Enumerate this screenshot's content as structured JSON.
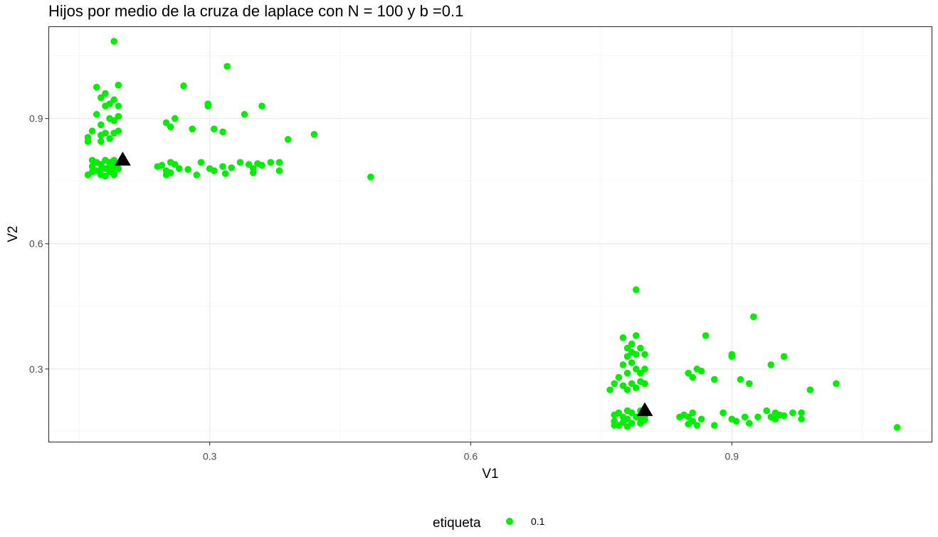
{
  "chart_data": {
    "type": "scatter",
    "title": "Hijos por medio de la cruza de laplace con N = 100 y b =0.1",
    "xlabel": "V1",
    "ylabel": "V2",
    "xlim": [
      0.115,
      1.13
    ],
    "ylim": [
      0.125,
      1.12
    ],
    "x_ticks": [
      0.3,
      0.6,
      0.9
    ],
    "x_tick_labels": [
      "0.3",
      "0.6",
      "0.9"
    ],
    "y_ticks": [
      0.3,
      0.6,
      0.9
    ],
    "y_tick_labels": [
      "0.3",
      "0.6",
      "0.9"
    ],
    "grid": true,
    "theme": "bw",
    "legend": {
      "title": "etiqueta",
      "position": "bottom",
      "labels": [
        "0.1"
      ]
    },
    "series": [
      {
        "name": "0.1",
        "color": "#00ee00",
        "marker": "circle",
        "points": [
          [
            0.19,
            1.085
          ],
          [
            0.32,
            1.025
          ],
          [
            0.17,
            0.975
          ],
          [
            0.195,
            0.98
          ],
          [
            0.27,
            0.978
          ],
          [
            0.18,
            0.96
          ],
          [
            0.175,
            0.95
          ],
          [
            0.19,
            0.945
          ],
          [
            0.185,
            0.935
          ],
          [
            0.195,
            0.93
          ],
          [
            0.18,
            0.93
          ],
          [
            0.298,
            0.935
          ],
          [
            0.298,
            0.93
          ],
          [
            0.36,
            0.93
          ],
          [
            0.17,
            0.91
          ],
          [
            0.34,
            0.91
          ],
          [
            0.185,
            0.9
          ],
          [
            0.195,
            0.905
          ],
          [
            0.19,
            0.895
          ],
          [
            0.26,
            0.9
          ],
          [
            0.25,
            0.89
          ],
          [
            0.175,
            0.885
          ],
          [
            0.255,
            0.88
          ],
          [
            0.28,
            0.875
          ],
          [
            0.305,
            0.875
          ],
          [
            0.315,
            0.868
          ],
          [
            0.18,
            0.865
          ],
          [
            0.19,
            0.865
          ],
          [
            0.195,
            0.87
          ],
          [
            0.165,
            0.87
          ],
          [
            0.175,
            0.86
          ],
          [
            0.42,
            0.862
          ],
          [
            0.16,
            0.855
          ],
          [
            0.185,
            0.852
          ],
          [
            0.175,
            0.845
          ],
          [
            0.39,
            0.85
          ],
          [
            0.16,
            0.845
          ],
          [
            0.165,
            0.8
          ],
          [
            0.17,
            0.795
          ],
          [
            0.18,
            0.8
          ],
          [
            0.185,
            0.795
          ],
          [
            0.175,
            0.79
          ],
          [
            0.19,
            0.8
          ],
          [
            0.165,
            0.785
          ],
          [
            0.185,
            0.785
          ],
          [
            0.19,
            0.785
          ],
          [
            0.18,
            0.78
          ],
          [
            0.195,
            0.78
          ],
          [
            0.17,
            0.775
          ],
          [
            0.175,
            0.778
          ],
          [
            0.165,
            0.772
          ],
          [
            0.185,
            0.772
          ],
          [
            0.19,
            0.77
          ],
          [
            0.16,
            0.765
          ],
          [
            0.175,
            0.765
          ],
          [
            0.19,
            0.765
          ],
          [
            0.18,
            0.762
          ],
          [
            0.255,
            0.795
          ],
          [
            0.245,
            0.788
          ],
          [
            0.26,
            0.79
          ],
          [
            0.265,
            0.78
          ],
          [
            0.25,
            0.775
          ],
          [
            0.24,
            0.785
          ],
          [
            0.255,
            0.77
          ],
          [
            0.25,
            0.765
          ],
          [
            0.275,
            0.778
          ],
          [
            0.285,
            0.765
          ],
          [
            0.29,
            0.795
          ],
          [
            0.3,
            0.78
          ],
          [
            0.305,
            0.775
          ],
          [
            0.315,
            0.785
          ],
          [
            0.318,
            0.768
          ],
          [
            0.325,
            0.782
          ],
          [
            0.335,
            0.795
          ],
          [
            0.345,
            0.79
          ],
          [
            0.35,
            0.78
          ],
          [
            0.355,
            0.792
          ],
          [
            0.36,
            0.788
          ],
          [
            0.37,
            0.795
          ],
          [
            0.38,
            0.795
          ],
          [
            0.38,
            0.775
          ],
          [
            0.35,
            0.77
          ],
          [
            0.485,
            0.76
          ],
          [
            0.79,
            0.49
          ],
          [
            0.925,
            0.425
          ],
          [
            0.775,
            0.375
          ],
          [
            0.79,
            0.38
          ],
          [
            0.87,
            0.38
          ],
          [
            0.785,
            0.36
          ],
          [
            0.78,
            0.35
          ],
          [
            0.795,
            0.35
          ],
          [
            0.785,
            0.34
          ],
          [
            0.79,
            0.335
          ],
          [
            0.78,
            0.33
          ],
          [
            0.8,
            0.335
          ],
          [
            0.9,
            0.335
          ],
          [
            0.9,
            0.33
          ],
          [
            0.96,
            0.33
          ],
          [
            0.785,
            0.315
          ],
          [
            0.945,
            0.31
          ],
          [
            0.775,
            0.31
          ],
          [
            0.79,
            0.3
          ],
          [
            0.8,
            0.3
          ],
          [
            0.78,
            0.29
          ],
          [
            0.795,
            0.29
          ],
          [
            0.86,
            0.3
          ],
          [
            0.865,
            0.295
          ],
          [
            0.85,
            0.29
          ],
          [
            0.77,
            0.28
          ],
          [
            0.855,
            0.28
          ],
          [
            0.88,
            0.275
          ],
          [
            0.91,
            0.275
          ],
          [
            0.795,
            0.27
          ],
          [
            0.8,
            0.265
          ],
          [
            0.785,
            0.265
          ],
          [
            0.775,
            0.26
          ],
          [
            0.765,
            0.265
          ],
          [
            0.92,
            0.265
          ],
          [
            0.79,
            0.255
          ],
          [
            0.78,
            0.25
          ],
          [
            0.76,
            0.25
          ],
          [
            1.02,
            0.265
          ],
          [
            0.99,
            0.25
          ],
          [
            0.78,
            0.2
          ],
          [
            0.795,
            0.2
          ],
          [
            0.785,
            0.195
          ],
          [
            0.77,
            0.195
          ],
          [
            0.765,
            0.19
          ],
          [
            0.775,
            0.185
          ],
          [
            0.79,
            0.185
          ],
          [
            0.8,
            0.188
          ],
          [
            0.78,
            0.18
          ],
          [
            0.795,
            0.18
          ],
          [
            0.765,
            0.175
          ],
          [
            0.775,
            0.172
          ],
          [
            0.785,
            0.17
          ],
          [
            0.77,
            0.165
          ],
          [
            0.78,
            0.162
          ],
          [
            0.795,
            0.17
          ],
          [
            0.8,
            0.178
          ],
          [
            0.765,
            0.165
          ],
          [
            0.855,
            0.195
          ],
          [
            0.845,
            0.19
          ],
          [
            0.85,
            0.185
          ],
          [
            0.84,
            0.185
          ],
          [
            0.855,
            0.175
          ],
          [
            0.86,
            0.165
          ],
          [
            0.85,
            0.168
          ],
          [
            0.865,
            0.18
          ],
          [
            0.88,
            0.165
          ],
          [
            0.89,
            0.195
          ],
          [
            0.9,
            0.18
          ],
          [
            0.905,
            0.175
          ],
          [
            0.915,
            0.185
          ],
          [
            0.92,
            0.17
          ],
          [
            0.93,
            0.185
          ],
          [
            0.94,
            0.2
          ],
          [
            0.95,
            0.195
          ],
          [
            0.955,
            0.19
          ],
          [
            0.96,
            0.188
          ],
          [
            0.95,
            0.18
          ],
          [
            0.97,
            0.195
          ],
          [
            0.98,
            0.195
          ],
          [
            0.98,
            0.18
          ],
          [
            0.945,
            0.185
          ],
          [
            1.09,
            0.16
          ]
        ]
      },
      {
        "name": "",
        "color": "#000000",
        "marker": "triangle",
        "points": [
          [
            0.2,
            0.8
          ],
          [
            0.8,
            0.2
          ]
        ]
      }
    ]
  }
}
